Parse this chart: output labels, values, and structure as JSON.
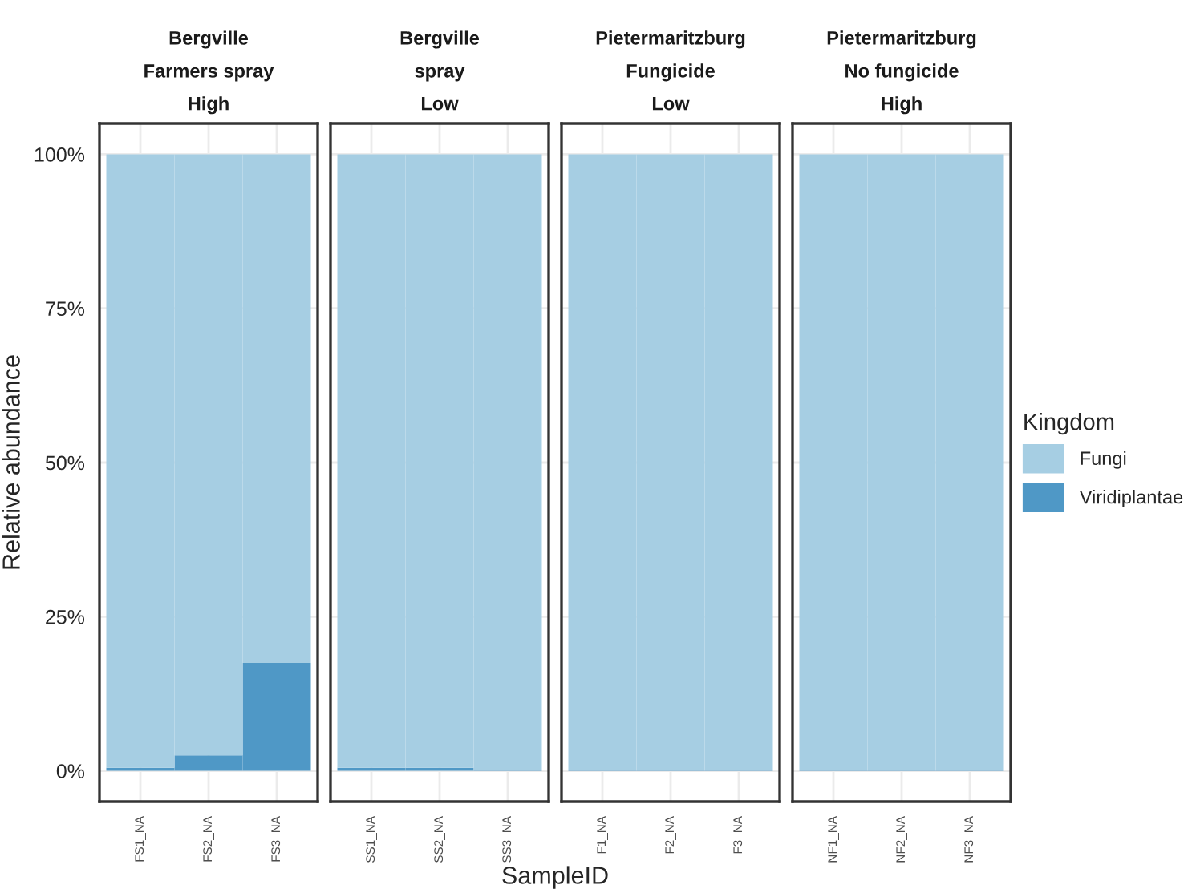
{
  "chart_data": [
    {
      "type": "bar",
      "stacked": true,
      "title": "Bergville\nFarmers spray\nHigh",
      "ylabel": "Relative abundance",
      "categories": [
        "FS1_NA",
        "FS2_NA",
        "FS3_NA"
      ],
      "ylim": [
        -5,
        105
      ],
      "yticks": [
        {
          "value": 0,
          "label": "0%"
        },
        {
          "value": 25,
          "label": "25%"
        },
        {
          "value": 50,
          "label": "50%"
        },
        {
          "value": 75,
          "label": "75%"
        },
        {
          "value": 100,
          "label": "100%"
        }
      ],
      "grid": true,
      "series": [
        {
          "color": "#4f98c6",
          "values": [
            0.5,
            2.5,
            17.5
          ]
        },
        {
          "color": "#a6cee3",
          "values": [
            99.5,
            97.5,
            82.5
          ]
        }
      ]
    },
    {
      "type": "bar",
      "stacked": true,
      "title": "Bergville\nspray\nLow",
      "xlabel": "SampleID",
      "categories": [
        "SS1_NA",
        "SS2_NA",
        "SS3_NA"
      ],
      "ylim": [
        -5,
        105
      ],
      "tick_labels": "x",
      "grid": true,
      "series": [
        {
          "color": "#4f98c6",
          "values": [
            0.5,
            0.5,
            0.2
          ]
        },
        {
          "color": "#a6cee3",
          "values": [
            99.5,
            99.5,
            99.8
          ]
        }
      ]
    },
    {
      "type": "bar",
      "stacked": true,
      "title": "Pietermaritzburg\nFungicide\nLow",
      "categories": [
        "F1_NA",
        "F2_NA",
        "F3_NA"
      ],
      "ylim": [
        -5,
        105
      ],
      "tick_labels": "x",
      "grid": true,
      "series": [
        {
          "color": "#4f98c6",
          "values": [
            0.2,
            0.2,
            0.2
          ]
        },
        {
          "color": "#a6cee3",
          "values": [
            99.8,
            99.8,
            99.8
          ]
        }
      ]
    },
    {
      "type": "bar",
      "stacked": true,
      "title": "Pietermaritzburg\nNo fungicide\nHigh",
      "categories": [
        "NF1_NA",
        "NF2_NA",
        "NF3_NA"
      ],
      "ylim": [
        -5,
        105
      ],
      "tick_labels": "x",
      "grid": true,
      "legend": "right",
      "legend_title": "Kingdom",
      "series": [
        {
          "name": "Viridiplantae",
          "color": "#4f98c6",
          "values": [
            0.2,
            0.2,
            0.2
          ]
        },
        {
          "name": "Fungi",
          "color": "#a6cee3",
          "values": [
            99.8,
            99.8,
            99.8
          ]
        }
      ]
    }
  ]
}
